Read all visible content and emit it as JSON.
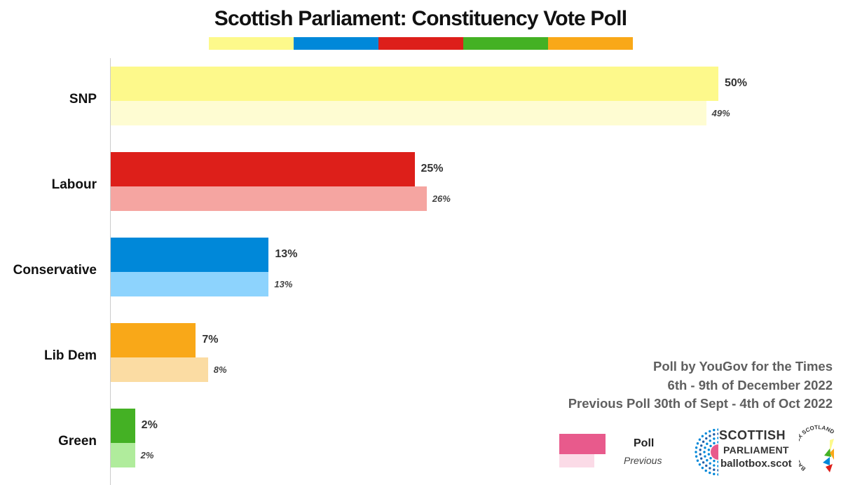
{
  "chart_data": {
    "type": "bar",
    "orientation": "horizontal",
    "title": "Scottish Parliament: Constituency Vote Poll",
    "categories": [
      "SNP",
      "Labour",
      "Conservative",
      "Lib Dem",
      "Green"
    ],
    "series": [
      {
        "name": "Poll",
        "values": [
          50,
          25,
          13,
          7,
          2
        ]
      },
      {
        "name": "Previous",
        "values": [
          49,
          26,
          13,
          8,
          2
        ]
      }
    ],
    "value_labels_current": [
      "50%",
      "25%",
      "13%",
      "7%",
      "2%"
    ],
    "value_labels_previous": [
      "49%",
      "26%",
      "13%",
      "8%",
      "2%"
    ],
    "bar_colors": [
      "#fdf98b",
      "#dd1f1a",
      "#0088d9",
      "#f9a818",
      "#44b124"
    ],
    "bar_colors_previous": [
      "#fefcd2",
      "#f5a5a1",
      "#8dd3fd",
      "#fbdca3",
      "#b0ec9c"
    ],
    "xlim": [
      0,
      50
    ],
    "grid": false,
    "legend_position": "bottom-right"
  },
  "title_colors": [
    "#fdf98b",
    "#0088d9",
    "#dd1f1a",
    "#44b124",
    "#f9a818"
  ],
  "source": {
    "line1": "Poll by YouGov for the Times",
    "line2": "6th - 9th of December 2022",
    "line3": "Previous Poll 30th of Sept - 4th of Oct 2022"
  },
  "legend": {
    "poll_label": "Poll",
    "previous_label": "Previous",
    "poll_color": "#e85a8c",
    "previous_color": "#fbdbe7"
  },
  "branding": {
    "line1": "SCOTTISH",
    "line2": "PARLIAMENT",
    "line3": "ballotbox.scot",
    "logo_text": "BALLOT BOX SCOTLAND"
  }
}
